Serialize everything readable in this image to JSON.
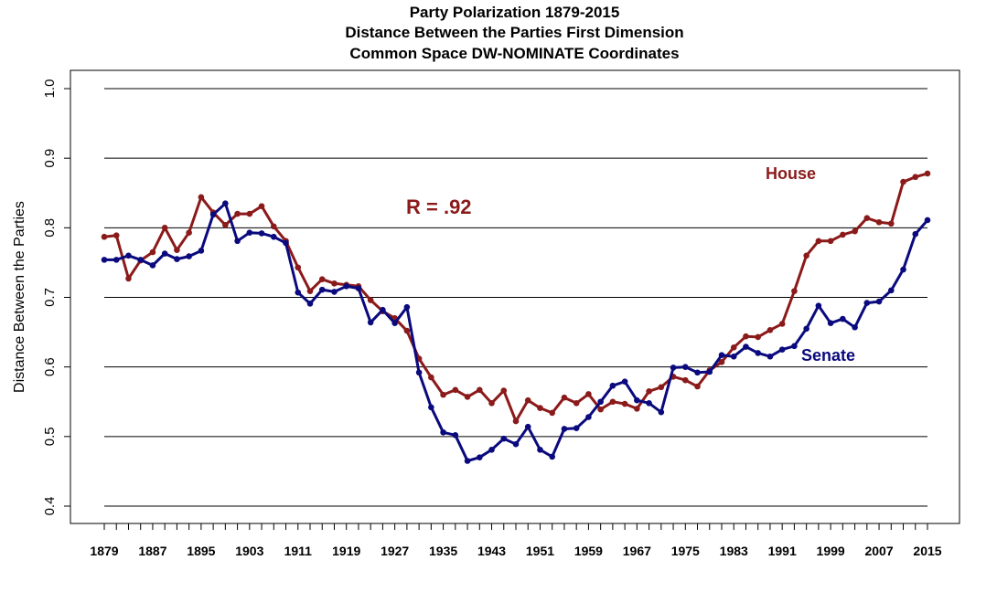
{
  "chart_data": {
    "type": "line",
    "title_lines": [
      "Party Polarization 1879-2015",
      "Distance Between the Parties First Dimension",
      "Common Space DW-NOMINATE Coordinates"
    ],
    "xlabel": "",
    "ylabel": "Distance Between the Parties",
    "ylim": [
      0.4,
      1.0
    ],
    "xlim": [
      1879,
      2015
    ],
    "yticks": [
      "0.4",
      "0.5",
      "0.6",
      "0.7",
      "0.8",
      "0.9",
      "1.0"
    ],
    "xtick_labels": [
      "1879",
      "1887",
      "1895",
      "1903",
      "1911",
      "1919",
      "1927",
      "1935",
      "1943",
      "1951",
      "1959",
      "1967",
      "1975",
      "1983",
      "1991",
      "1999",
      "2007",
      "2015"
    ],
    "grid": "horizontal",
    "x": [
      1879,
      1881,
      1883,
      1885,
      1887,
      1889,
      1891,
      1893,
      1895,
      1897,
      1899,
      1901,
      1903,
      1905,
      1907,
      1909,
      1911,
      1913,
      1915,
      1917,
      1919,
      1921,
      1923,
      1925,
      1927,
      1929,
      1931,
      1933,
      1935,
      1937,
      1939,
      1941,
      1943,
      1945,
      1947,
      1949,
      1951,
      1953,
      1955,
      1957,
      1959,
      1961,
      1963,
      1965,
      1967,
      1969,
      1971,
      1973,
      1975,
      1977,
      1979,
      1981,
      1983,
      1985,
      1987,
      1989,
      1991,
      1993,
      1995,
      1997,
      1999,
      2001,
      2003,
      2005,
      2007,
      2009,
      2011,
      2013,
      2015
    ],
    "series": [
      {
        "name": "House",
        "color": "#8B1A1A",
        "values": [
          0.787,
          0.789,
          0.727,
          0.753,
          0.765,
          0.8,
          0.768,
          0.793,
          0.844,
          0.822,
          0.804,
          0.82,
          0.82,
          0.831,
          0.802,
          0.781,
          0.743,
          0.709,
          0.726,
          0.72,
          0.718,
          0.716,
          0.696,
          0.68,
          0.67,
          0.652,
          0.612,
          0.585,
          0.56,
          0.567,
          0.557,
          0.567,
          0.548,
          0.566,
          0.522,
          0.552,
          0.541,
          0.534,
          0.556,
          0.548,
          0.561,
          0.539,
          0.55,
          0.547,
          0.54,
          0.565,
          0.571,
          0.586,
          0.581,
          0.572,
          0.595,
          0.607,
          0.628,
          0.644,
          0.643,
          0.653,
          0.662,
          0.709,
          0.76,
          0.781,
          0.781,
          0.79,
          0.795,
          0.814,
          0.808,
          0.806,
          0.866,
          0.873,
          0.878
        ]
      },
      {
        "name": "Senate",
        "color": "#0A0A7E",
        "values": [
          0.754,
          0.754,
          0.76,
          0.754,
          0.746,
          0.763,
          0.755,
          0.759,
          0.767,
          0.819,
          0.835,
          0.781,
          0.793,
          0.792,
          0.787,
          0.778,
          0.707,
          0.691,
          0.711,
          0.708,
          0.716,
          0.713,
          0.664,
          0.682,
          0.663,
          0.686,
          0.592,
          0.542,
          0.506,
          0.502,
          0.465,
          0.47,
          0.481,
          0.497,
          0.489,
          0.514,
          0.481,
          0.471,
          0.511,
          0.512,
          0.528,
          0.55,
          0.573,
          0.579,
          0.552,
          0.548,
          0.535,
          0.599,
          0.6,
          0.592,
          0.593,
          0.617,
          0.615,
          0.629,
          0.62,
          0.615,
          0.625,
          0.63,
          0.655,
          0.688,
          0.663,
          0.669,
          0.657,
          0.692,
          0.694,
          0.71,
          0.74,
          0.791,
          0.811
        ]
      }
    ],
    "annotations": {
      "r_value": "R = .92",
      "house_label": "House",
      "senate_label": "Senate"
    }
  }
}
